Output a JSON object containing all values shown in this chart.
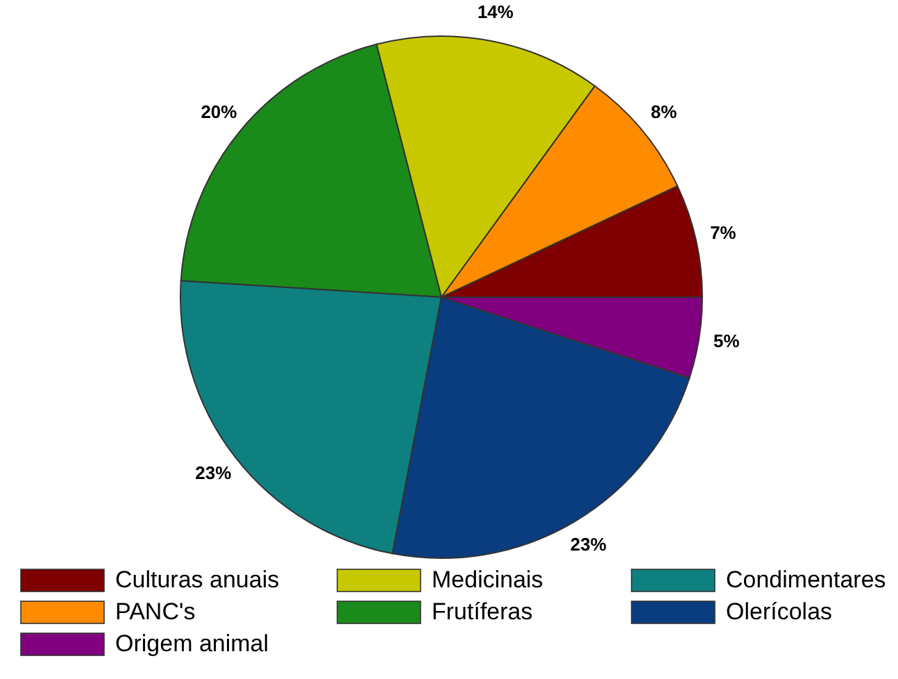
{
  "chart_data": {
    "type": "pie",
    "categories": [
      "Culturas anuais",
      "PANC's",
      "Medicinais",
      "Frutíferas",
      "Condimentares",
      "Olerícolas",
      "Origem animal"
    ],
    "values": [
      7,
      8,
      14,
      20,
      23,
      23,
      5
    ],
    "colors": [
      "#7f0000",
      "#ff8c00",
      "#c8c800",
      "#1a8a1a",
      "#0f8080",
      "#0a3d7f",
      "#800080"
    ],
    "value_labels": [
      "7%",
      "8%",
      "14%",
      "20%",
      "23%",
      "23%",
      "5%"
    ],
    "legend": "bottom"
  }
}
